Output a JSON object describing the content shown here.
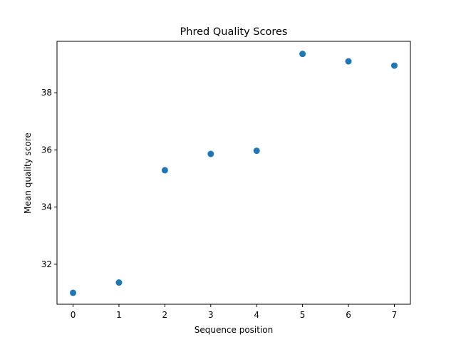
{
  "chart_data": {
    "type": "scatter",
    "title": "Phred Quality Scores",
    "xlabel": "Sequence position",
    "ylabel": "Mean quality score",
    "xlim": [
      -0.35,
      7.35
    ],
    "ylim": [
      30.6,
      39.8
    ],
    "xticks": [
      0,
      1,
      2,
      3,
      4,
      5,
      6,
      7
    ],
    "yticks": [
      32,
      34,
      36,
      38
    ],
    "grid": false,
    "series": [
      {
        "color": "#1f77b4",
        "x": [
          0,
          1,
          2,
          3,
          4,
          5,
          6,
          7
        ],
        "y": [
          31.0,
          31.36,
          35.29,
          35.86,
          35.97,
          39.36,
          39.1,
          38.95
        ]
      }
    ]
  }
}
